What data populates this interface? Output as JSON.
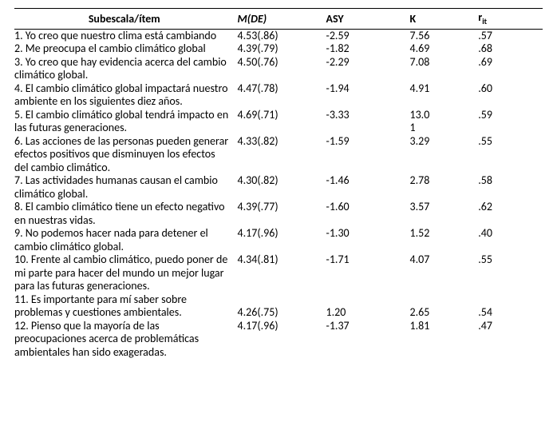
{
  "headers": {
    "item": "Subescala/ítem",
    "mde_m": "M",
    "mde_de": "(DE)",
    "asy": "ASY",
    "k": "K",
    "rit_main": "r",
    "rit_sub": "it"
  },
  "rows": [
    {
      "item": "1. Yo creo que nuestro clima está cambiando",
      "m": "4.53",
      "de": "(.86)",
      "asy": "-2.59",
      "k": "7.56",
      "rit": ".57"
    },
    {
      "item": "2. Me preocupa el cambio climático global",
      "m": "4.39",
      "de": "(.79)",
      "asy": "-1.82",
      "k": "4.69",
      "rit": ".68"
    },
    {
      "item": "3. Yo creo que hay evidencia acerca del cambio climático global.",
      "m": "4.50",
      "de": "(.76)",
      "asy": "-2.29",
      "k": "7.08",
      "rit": ".69"
    },
    {
      "item": "4. El cambio climático global impactará nuestro ambiente en los siguientes diez años.",
      "m": "4.47",
      "de": "(.78)",
      "asy": "-1.94",
      "k": "4.91",
      "rit": ".60"
    },
    {
      "item": "5. El cambio climático global tendrá impacto en las futuras generaciones.",
      "m": "4.69",
      "de": "(.71)",
      "asy": "-3.33",
      "k": "13.0\n1",
      "rit": ".59"
    },
    {
      "item": "6. Las acciones de las personas pueden generar efectos positivos que disminuyen los efectos del cambio climático.",
      "m": "4.33",
      "de": "(.82)",
      "asy": "-1.59",
      "k": "3.29",
      "rit": ".55"
    },
    {
      "item": "7. Las actividades humanas causan el cambio climático global.",
      "m": "4.30",
      "de": "(.82)",
      "asy": "-1.46",
      "k": "2.78",
      "rit": ".58"
    },
    {
      "item": "8. El cambio climático tiene un efecto negativo en nuestras vidas.",
      "m": "4.39",
      "de": "(.77)",
      "asy": "-1.60",
      "k": "3.57",
      "rit": ".62"
    },
    {
      "item": "9. No podemos hacer nada para detener el cambio climático global.",
      "m": "4.17",
      "de": "(.96)",
      "asy": "-1.30",
      "k": "1.52",
      "rit": ".40"
    },
    {
      "item": "10. Frente al cambio climático, puedo poner de mi parte para hacer del mundo un mejor lugar para las futuras generaciones.",
      "m": "4.34",
      "de": "(.81)",
      "asy": "-1.71",
      "k": "4.07",
      "rit": ".55"
    },
    {
      "item": "11. Es importante para mí saber sobre problemas y cuestiones ambientales.",
      "m": "4.26",
      "de": "(.75)",
      "asy": "1.20",
      "k": "2.65",
      "rit": ".54",
      "values_on_last_line": true
    },
    {
      "item": "12. Pienso que la mayoría de las preocupaciones acerca de problemáticas ambientales han sido exageradas.",
      "m": "4.17",
      "de": "(.96)",
      "asy": "-1.37",
      "k": "1.81",
      "rit": ".47"
    }
  ],
  "style": {
    "font_family": "Calibri",
    "font_size_pt": 10.5,
    "text_color": "#000000",
    "background_color": "#ffffff",
    "rule_color": "#000000"
  }
}
